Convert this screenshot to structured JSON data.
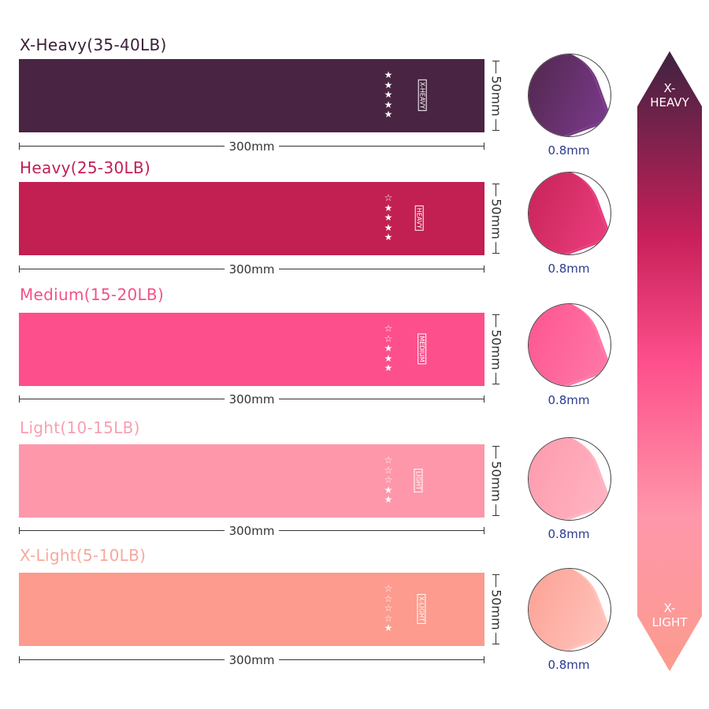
{
  "bands": [
    {
      "title": "X-Heavy(35-40LB)",
      "level": "X-HEAVY",
      "stars_filled": 5,
      "stars_total": 5,
      "color": "#4a2443",
      "title_color": "#3a2236",
      "light": "#7a3a8a",
      "width": "300mm",
      "height": "50mm",
      "thickness": "0.8mm"
    },
    {
      "title": "Heavy(25-30LB)",
      "level": "HEAVY",
      "stars_filled": 4,
      "stars_total": 5,
      "color": "#c21f53",
      "title_color": "#c21f53",
      "light": "#ea3d7c",
      "width": "300mm",
      "height": "50mm",
      "thickness": "0.8mm"
    },
    {
      "title": "Medium(15-20LB)",
      "level": "MEDIUM",
      "stars_filled": 3,
      "stars_total": 5,
      "color": "#fd4f8b",
      "title_color": "#f2528b",
      "light": "#ff78a8",
      "width": "300mm",
      "height": "50mm",
      "thickness": "0.8mm"
    },
    {
      "title": "Light(10-15LB)",
      "level": "LIGHT",
      "stars_filled": 2,
      "stars_total": 5,
      "color": "#fe97aa",
      "title_color": "#f7a0b2",
      "light": "#ffb3c1",
      "width": "300mm",
      "height": "50mm",
      "thickness": "0.8mm"
    },
    {
      "title": "X-Light(5-10LB)",
      "level": "X-LIGHT",
      "stars_filled": 1,
      "stars_total": 5,
      "color": "#fc9b8e",
      "title_color": "#f7a99e",
      "light": "#ffc4bc",
      "width": "300mm",
      "height": "50mm",
      "thickness": "0.8mm"
    }
  ],
  "scale": {
    "top_label": "X-\nHEAVY",
    "top_line1": "X-",
    "top_line2": "HEAVY",
    "bottom_line1": "X-",
    "bottom_line2": "LIGHT",
    "colors": [
      "#3e2340",
      "#c8205a",
      "#fd4f8b",
      "#fe97aa",
      "#fc9b8e"
    ]
  }
}
